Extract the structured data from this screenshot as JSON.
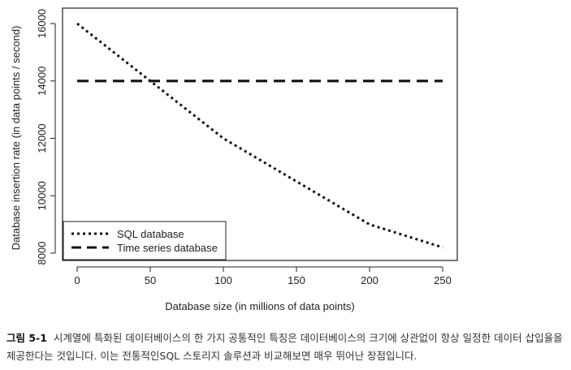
{
  "chart_data": {
    "type": "line",
    "xlabel": "Database size (in millions of data points)",
    "ylabel": "Database insertion rate (in data points / second)",
    "xlim": [
      0,
      250
    ],
    "ylim": [
      8000,
      16000
    ],
    "xticks": [
      0,
      50,
      100,
      150,
      200,
      250
    ],
    "yticks": [
      8000,
      10000,
      12000,
      14000,
      16000
    ],
    "grid": false,
    "legend_position": "bottom-left",
    "series": [
      {
        "name": "SQL database",
        "style": "dotted",
        "x": [
          0,
          50,
          100,
          150,
          200,
          250
        ],
        "y": [
          16000,
          14000,
          12000,
          10500,
          9000,
          8200
        ]
      },
      {
        "name": "Time series database",
        "style": "dashed",
        "x": [
          0,
          250
        ],
        "y": [
          14000,
          14000
        ]
      }
    ]
  },
  "caption": {
    "label": "그림 5-1",
    "text": "시계열에 특화된 데이터베이스의 한 가지 공통적인 특징은 데이터베이스의 크기에 상관없이 항상 일정한 데이터 삽입율을 제공한다는 것입니다. 이는 전통적인SQL 스토리지 솔루션과 비교해보면 매우 뛰어난 장점입니다."
  },
  "colors": {
    "line": "#111111",
    "axis": "#222222",
    "caption_label": "#111111"
  }
}
